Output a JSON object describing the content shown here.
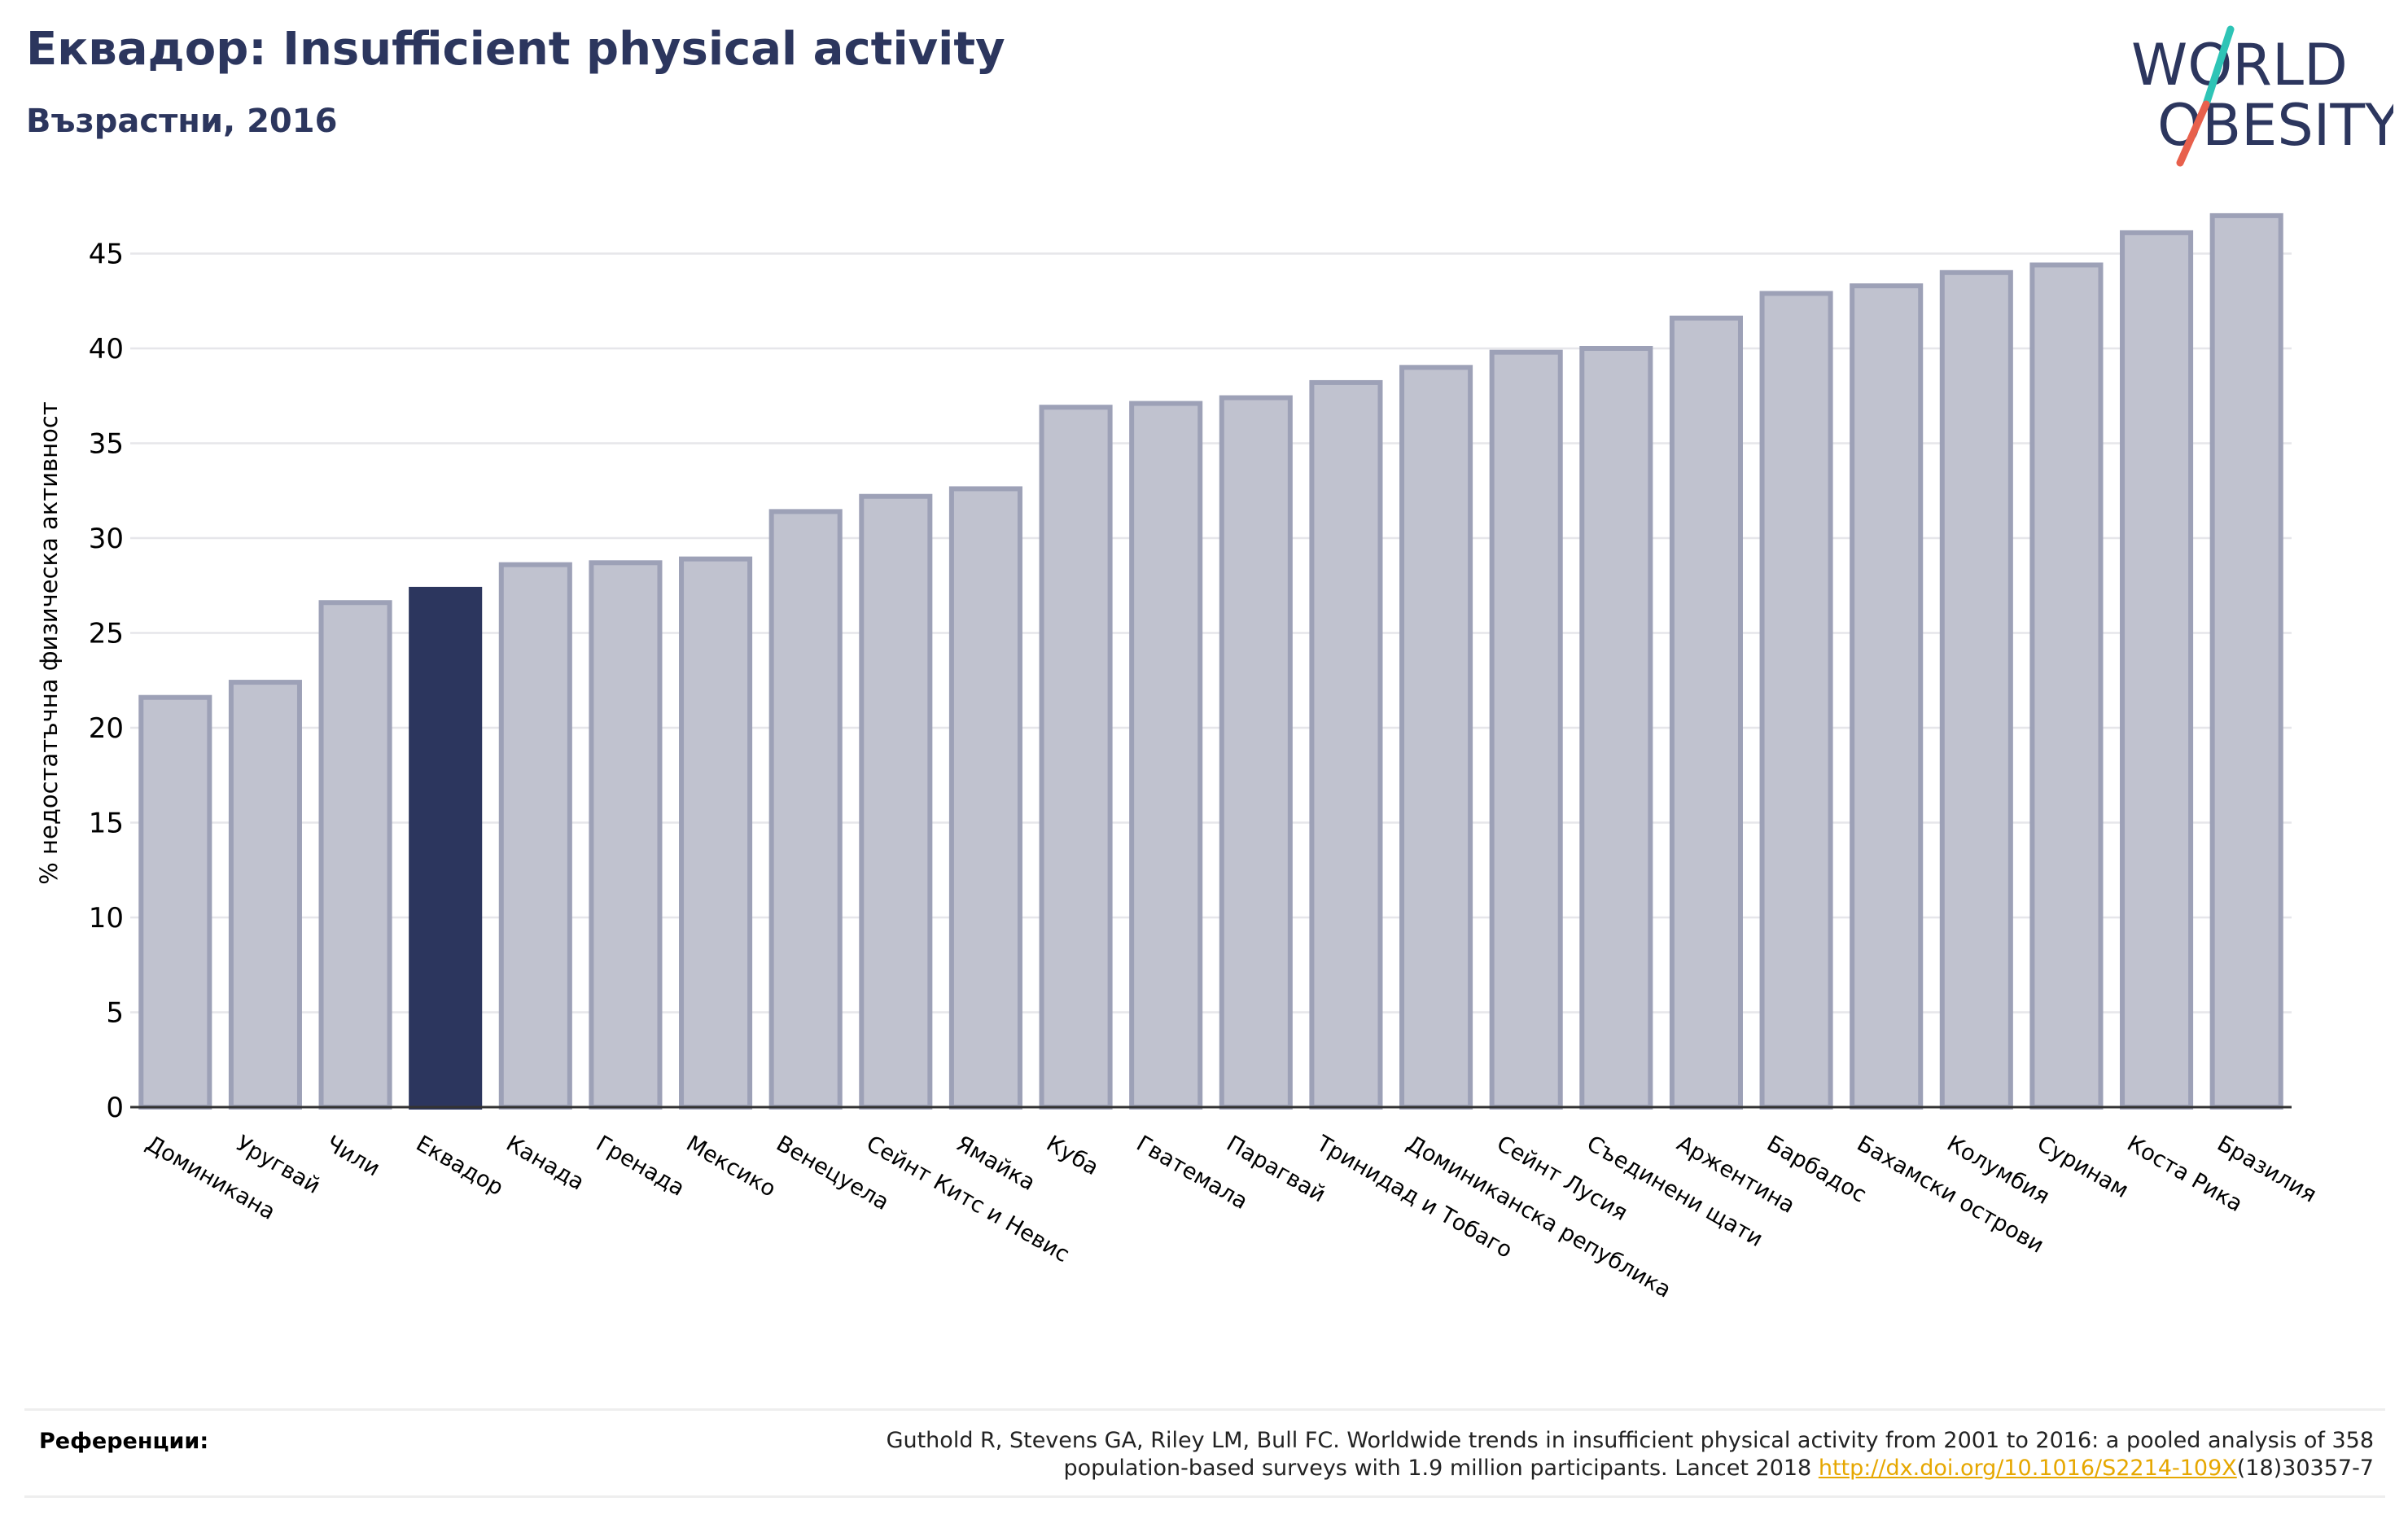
{
  "header": {
    "title": "Еквадор: Insufficient physical activity",
    "subtitle": "Възрастни, 2016"
  },
  "logo": {
    "line1": "WORLD",
    "line2": "OBESITY",
    "colors": {
      "text": "#2c365e",
      "slash_top": "#2ec4b6",
      "slash_bottom": "#e8604c"
    }
  },
  "chart_data": {
    "type": "bar",
    "ylabel": "% недостатъчна физическа активност",
    "xlabel": "",
    "ylim": [
      0,
      47.5
    ],
    "yticks": [
      0,
      5,
      10,
      15,
      20,
      25,
      30,
      35,
      40,
      45
    ],
    "grid": true,
    "highlight": "Еквадор",
    "colors": {
      "bar": "#c0c2cf",
      "bar_edge": "#9da1b7",
      "highlight": "#2c365e",
      "grid": "#e6e6ea",
      "axis": "#333333"
    },
    "categories": [
      "Доминикана",
      "Уругвай",
      "Чили",
      "Еквадор",
      "Канада",
      "Гренада",
      "Мексико",
      "Венецуела",
      "Сейнт Китс и Невис",
      "Ямайка",
      "Куба",
      "Гватемала",
      "Парагвай",
      "Тринидад и Тобаго",
      "Доминиканска република",
      "Сейнт Лусия",
      "Съединени щати",
      "Аржентина",
      "Барбадос",
      "Бахамски острови",
      "Колумбия",
      "Суринам",
      "Коста Рика",
      "Бразилия"
    ],
    "values": [
      21.6,
      22.4,
      26.6,
      27.3,
      28.6,
      28.7,
      28.9,
      31.4,
      32.2,
      32.6,
      36.9,
      37.1,
      37.4,
      38.2,
      39.0,
      39.8,
      40.0,
      41.6,
      42.9,
      43.3,
      44.0,
      44.4,
      46.1,
      47.0
    ]
  },
  "references": {
    "label": "Референции:",
    "line1": "Guthold R, Stevens GA, Riley LM, Bull FC. Worldwide trends in insufficient physical activity from 2001 to 2016: a pooled analysis of 358",
    "line2_before": "population-based surveys with 1.9 million participants. Lancet 2018 ",
    "link": "http://dx.doi.org/10.1016/S2214-109X",
    "line2_after": "(18)30357-7"
  }
}
